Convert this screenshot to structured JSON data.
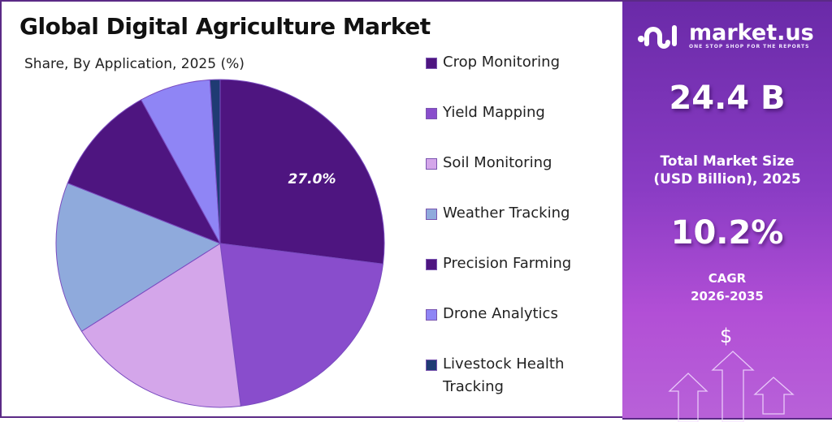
{
  "header": {
    "title": "Global Digital Agriculture Market",
    "subtitle": "Share, By Application, 2025 (%)"
  },
  "chart_data": {
    "type": "pie",
    "title": "Global Digital Agriculture Market",
    "subtitle": "Share, By Application, 2025 (%)",
    "categories": [
      "Crop Monitoring",
      "Yield Mapping",
      "Soil Monitoring",
      "Weather Tracking",
      "Precision Farming",
      "Drone Analytics",
      "Livestock Health Tracking"
    ],
    "values": [
      27.0,
      21.0,
      18.0,
      15.0,
      11.0,
      7.0,
      1.0
    ],
    "colors": [
      "#4e1580",
      "#894dcc",
      "#d4a6ea",
      "#8faadc",
      "#4e1580",
      "#8f85f5",
      "#1f3b73"
    ],
    "data_labels": [
      {
        "category": "Crop Monitoring",
        "text": "27.0%"
      }
    ],
    "legend_position": "right",
    "start_angle_deg": 0,
    "direction": "clockwise"
  },
  "legend": {
    "items": [
      {
        "label": "Crop Monitoring",
        "color": "#4e1580"
      },
      {
        "label": "Yield Mapping",
        "color": "#894dcc"
      },
      {
        "label": "Soil Monitoring",
        "color": "#d4a6ea"
      },
      {
        "label": "Weather Tracking",
        "color": "#8faadc"
      },
      {
        "label": "Precision Farming",
        "color": "#4e1580"
      },
      {
        "label": "Drone Analytics",
        "color": "#8f85f5"
      },
      {
        "label": "Livestock Health Tracking",
        "color": "#1f3b73"
      }
    ]
  },
  "pie_label": "27.0%",
  "sidebar": {
    "brand": "market.us",
    "tagline": "ONE STOP SHOP FOR THE REPORTS",
    "market_size_value": "24.4 B",
    "market_size_label_line1": "Total Market Size",
    "market_size_label_line2": "(USD Billion), 2025",
    "cagr_value": "10.2%",
    "cagr_label_line1": "CAGR",
    "cagr_label_line2": "2026-2035",
    "currency_symbol": "$"
  }
}
